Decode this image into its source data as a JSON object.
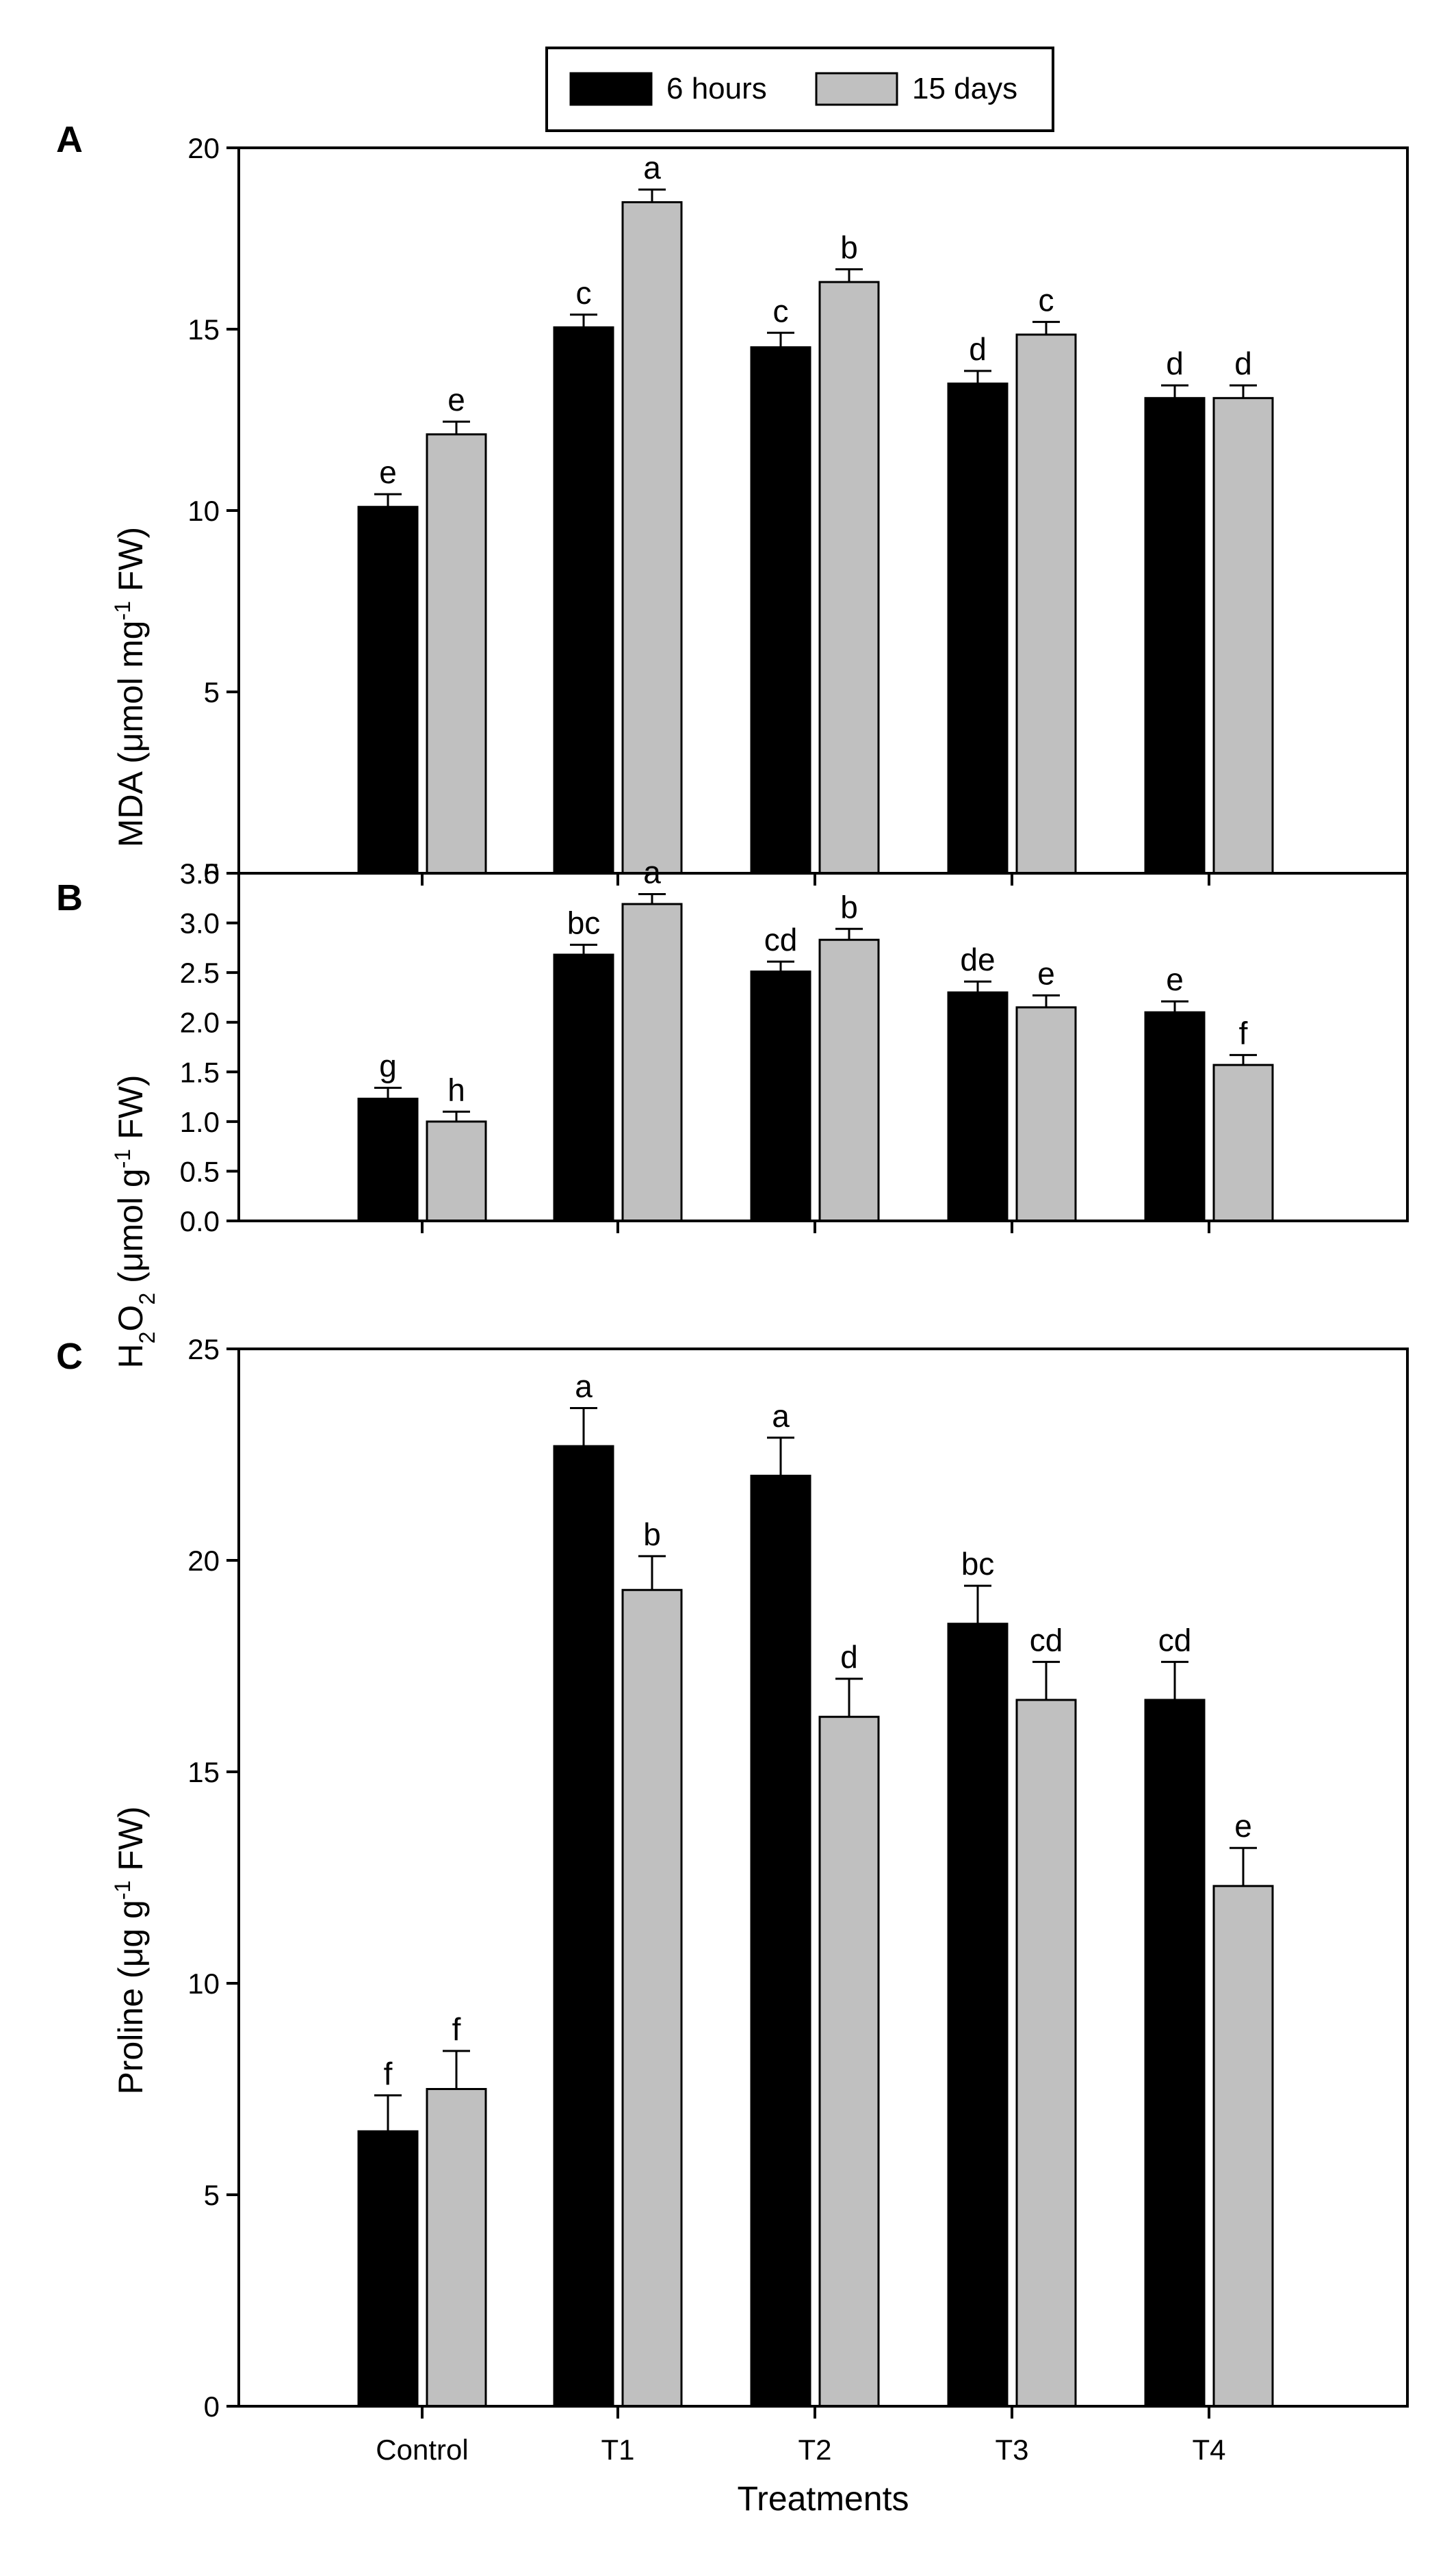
{
  "legend": {
    "series_a": "6 hours",
    "series_b": "15 days"
  },
  "series_colors": [
    "#000000",
    "#c0c0c0"
  ],
  "chart_data": [
    {
      "type": "bar",
      "panel": "A",
      "categories": [
        "Control",
        "T1",
        "T2",
        "T3",
        "T4"
      ],
      "ylabel": "MDA (μmol mg-1 FW)",
      "ylabel_main": "MDA (μmol mg",
      "ylabel_sup": "-1",
      "ylabel_tail": " FW)",
      "ylim": [
        0,
        20
      ],
      "yticks": [
        0,
        5,
        10,
        15,
        20
      ],
      "ytick_labels": [
        "0",
        "5",
        "10",
        "15",
        "20"
      ],
      "series": [
        {
          "name": "6 hours",
          "values": [
            10.1,
            15.05,
            14.5,
            13.5,
            13.1
          ],
          "errors": [
            0.35,
            0.35,
            0.4,
            0.35,
            0.35
          ],
          "letters": [
            "e",
            "c",
            "c",
            "d",
            "d"
          ]
        },
        {
          "name": "15 days",
          "values": [
            12.1,
            18.5,
            16.3,
            14.85,
            13.1
          ],
          "errors": [
            0.35,
            0.35,
            0.35,
            0.35,
            0.35
          ],
          "letters": [
            "e",
            "a",
            "b",
            "c",
            "d"
          ]
        }
      ]
    },
    {
      "type": "bar",
      "panel": "B",
      "categories": [
        "Control",
        "T1",
        "T2",
        "T3",
        "T4"
      ],
      "ylabel": "H2O2 (μmol g-1 FW)",
      "ylabel_h": "H",
      "ylabel_sub1": "2",
      "ylabel_o": "O",
      "ylabel_sub2": "2",
      "ylabel_main": " (μmol g",
      "ylabel_sup": "-1",
      "ylabel_tail": " FW)",
      "ylim": [
        0,
        3.5
      ],
      "yticks": [
        0,
        0.5,
        1,
        1.5,
        2,
        2.5,
        3,
        3.5
      ],
      "ytick_labels": [
        "0.0",
        "0.5",
        "1.0",
        "1.5",
        "2.0",
        "2.5",
        "3.0",
        "3.5"
      ],
      "series": [
        {
          "name": "6 hours",
          "values": [
            1.23,
            2.68,
            2.51,
            2.3,
            2.1
          ],
          "errors": [
            0.11,
            0.1,
            0.1,
            0.11,
            0.11
          ],
          "letters": [
            "g",
            "bc",
            "cd",
            "de",
            "e"
          ]
        },
        {
          "name": "15 days",
          "values": [
            1.0,
            3.19,
            2.83,
            2.15,
            1.57
          ],
          "errors": [
            0.1,
            0.1,
            0.11,
            0.12,
            0.1
          ],
          "letters": [
            "h",
            "a",
            "b",
            "e",
            "f"
          ]
        }
      ]
    },
    {
      "type": "bar",
      "panel": "C",
      "categories": [
        "Control",
        "T1",
        "T2",
        "T3",
        "T4"
      ],
      "xlabel": "Treatments",
      "ylabel": "Proline (μg g-1 FW)",
      "ylabel_main": "Proline (μg g",
      "ylabel_sup": "-1",
      "ylabel_tail": " FW)",
      "ylim": [
        0,
        25
      ],
      "yticks": [
        0,
        5,
        10,
        15,
        20,
        25
      ],
      "ytick_labels": [
        "0",
        "5",
        "10",
        "15",
        "20",
        "25"
      ],
      "series": [
        {
          "name": "6 hours",
          "values": [
            6.5,
            22.7,
            22.0,
            18.5,
            16.7
          ],
          "errors": [
            0.85,
            0.9,
            0.9,
            0.9,
            0.9
          ],
          "letters": [
            "f",
            "a",
            "a",
            "bc",
            "cd"
          ]
        },
        {
          "name": "15 days",
          "values": [
            7.5,
            19.3,
            16.3,
            16.7,
            12.3
          ],
          "errors": [
            0.9,
            0.8,
            0.9,
            0.9,
            0.9
          ],
          "letters": [
            "f",
            "b",
            "d",
            "cd",
            "e"
          ]
        }
      ]
    }
  ]
}
